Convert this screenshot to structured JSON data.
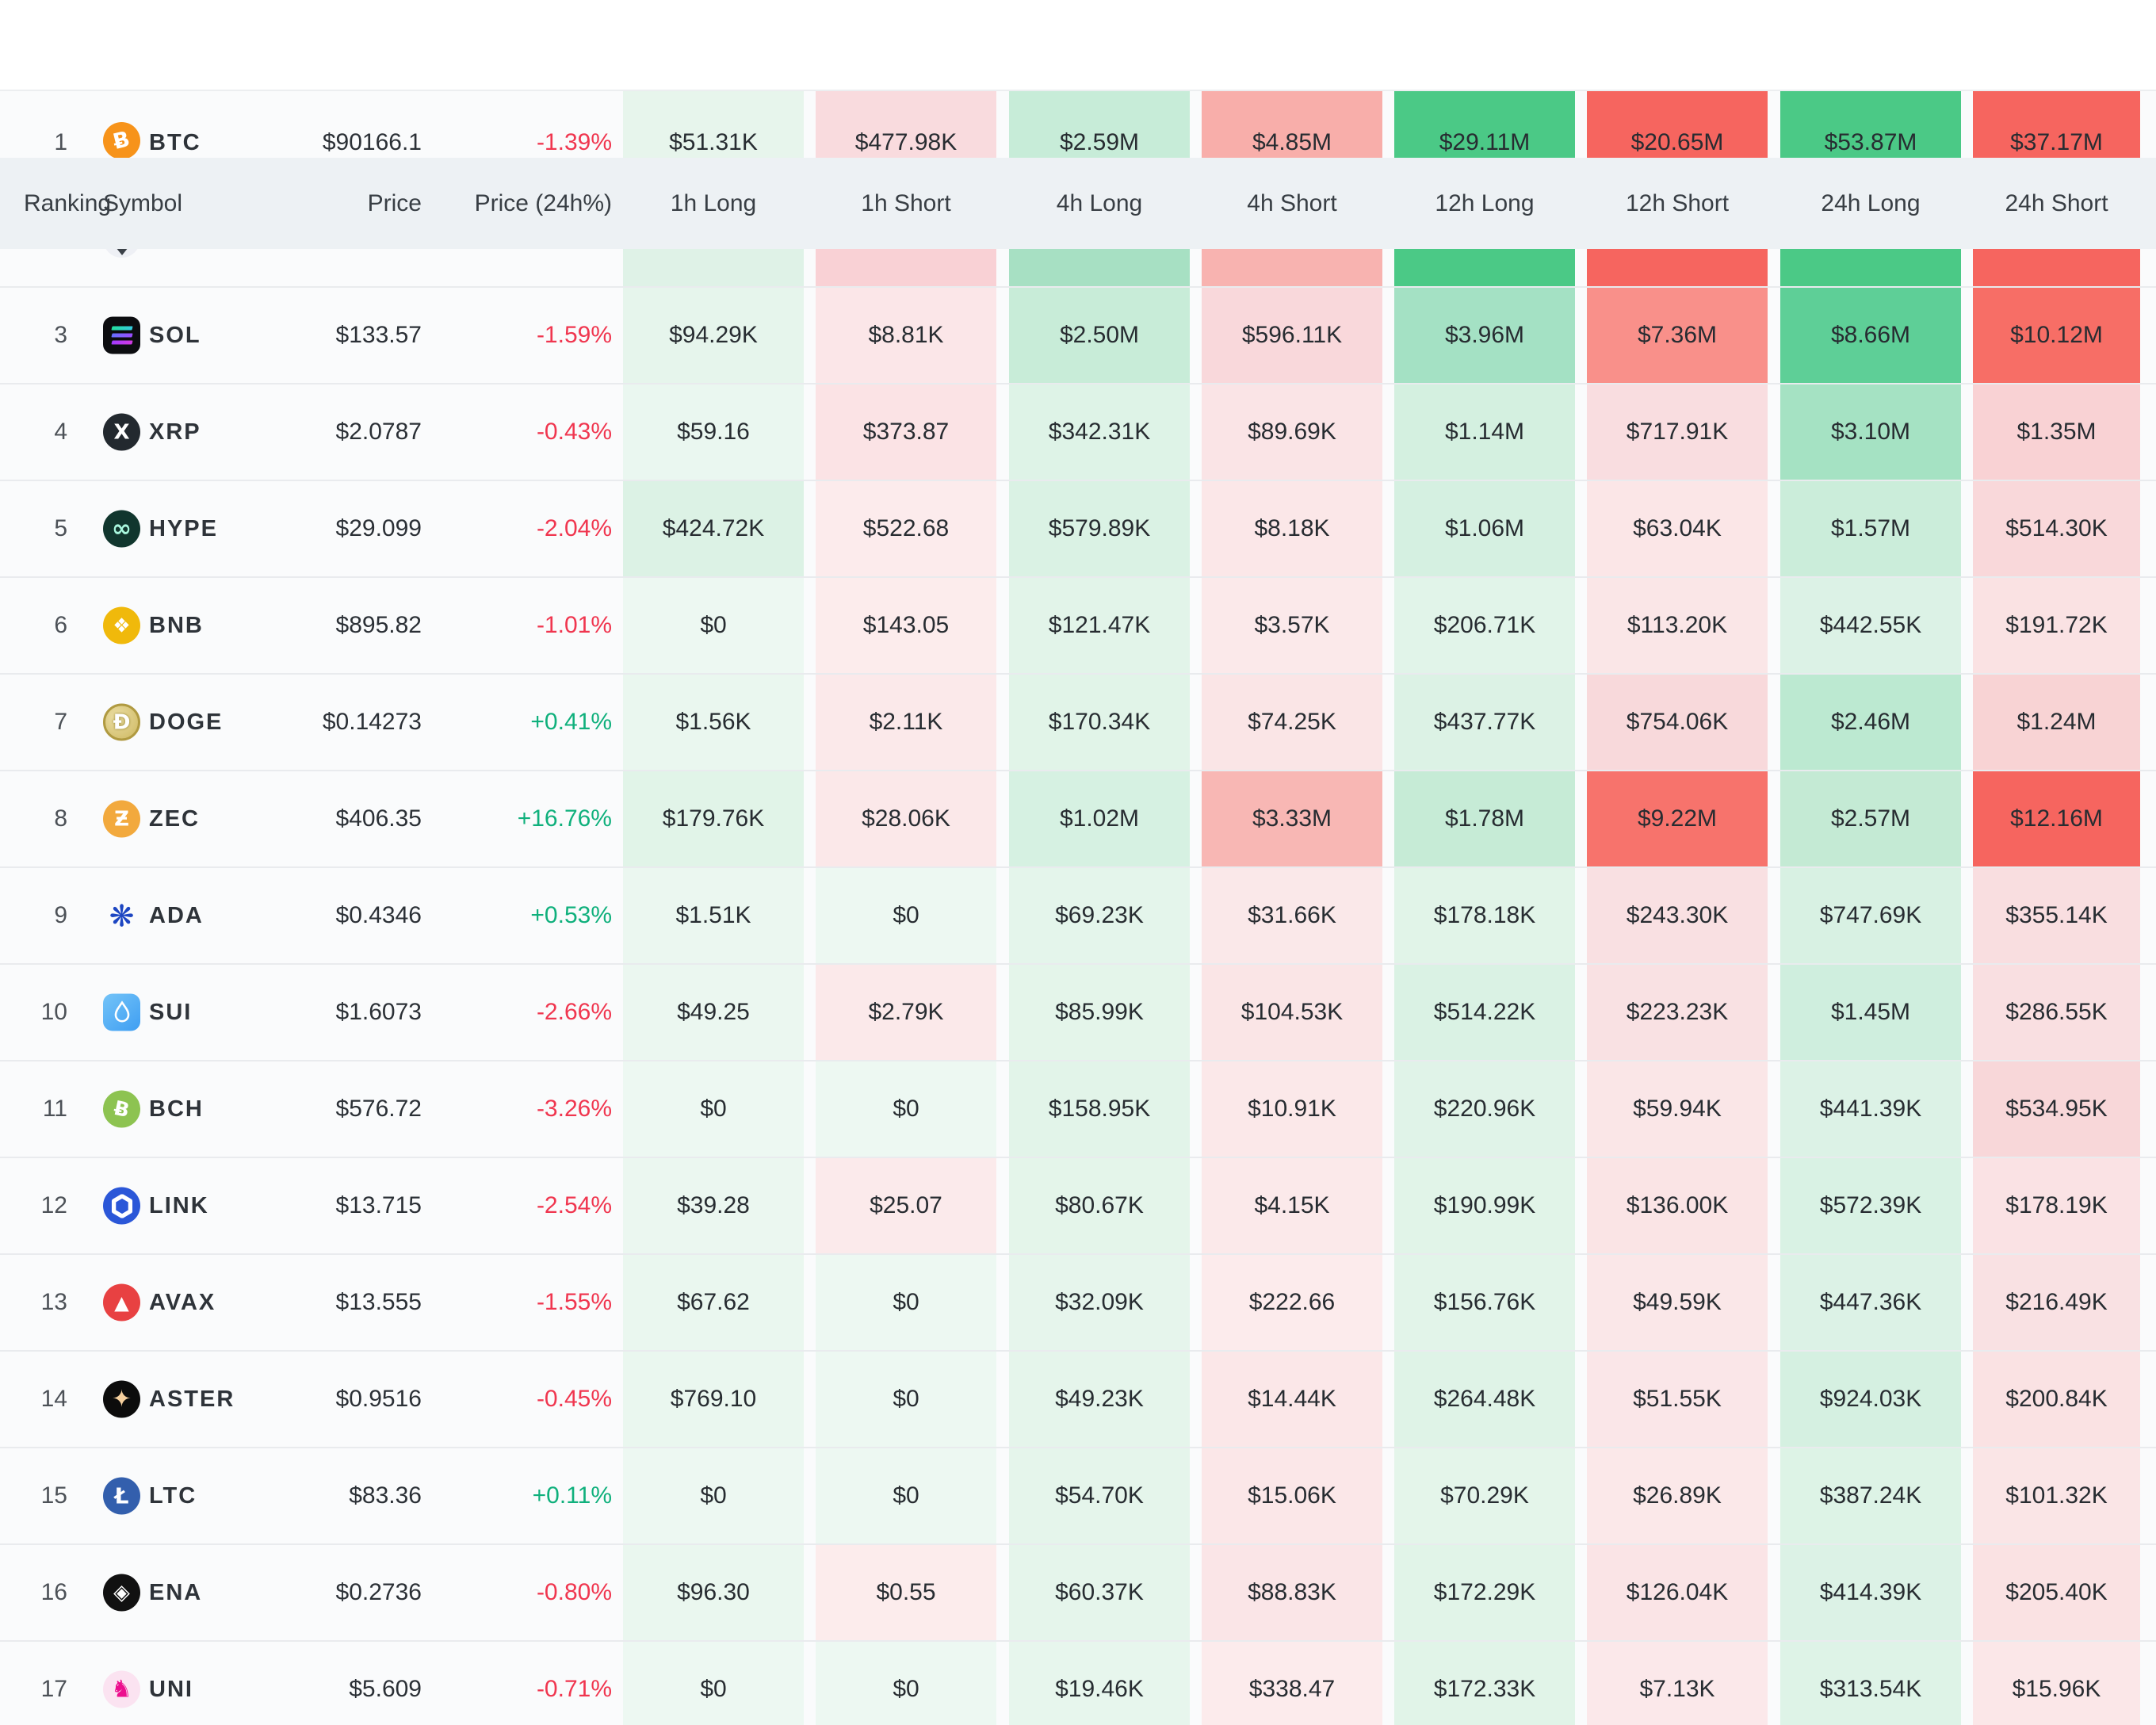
{
  "page": {
    "header_bg": "#edf1f4",
    "row_bg": "#fafbfc",
    "long_full_color": "#4bc986",
    "short_full_color": "#f6655f",
    "positive_color": "#0fb07c",
    "negative_color": "#f0364f"
  },
  "header": {
    "labels": [
      "Ranking",
      "Symbol",
      "Price",
      "Price (24h%)",
      "1h Long",
      "1h Short",
      "4h Long",
      "4h Short",
      "12h Long",
      "12h Short",
      "24h Long",
      "24h Short"
    ]
  },
  "partial_row": {
    "icon": {
      "kind": "eth",
      "name": "eth-icon"
    },
    "cell_bgs": [
      "#dff2e7",
      "#f9d1d5",
      "#a7e0c3",
      "#f8b3b0",
      "#4bc986",
      "#f6655f",
      "#4bc986",
      "#f6655f"
    ]
  },
  "rows": [
    {
      "rank": "1",
      "symbol": "BTC",
      "price": "$90166.1",
      "change": "-1.39%",
      "dir": "down",
      "icon": {
        "kind": "glyph",
        "name": "btc-icon",
        "shape": "circle",
        "bg": "#f7931a",
        "fg": "#ffffff",
        "glyph": "Ƀ",
        "size": 27,
        "rot": -14
      },
      "cells": [
        {
          "v": "$51.31K",
          "bg": "#e7f5ec"
        },
        {
          "v": "$477.98K",
          "bg": "#f9dbde"
        },
        {
          "v": "$2.59M",
          "bg": "#c7ecd8"
        },
        {
          "v": "$4.85M",
          "bg": "#f8aeaa"
        },
        {
          "v": "$29.11M",
          "bg": "#4bc986"
        },
        {
          "v": "$20.65M",
          "bg": "#f6655f"
        },
        {
          "v": "$53.87M",
          "bg": "#4bc986"
        },
        {
          "v": "$37.17M",
          "bg": "#f6655f"
        }
      ]
    },
    {
      "rank": "3",
      "symbol": "SOL",
      "price": "$133.57",
      "change": "-1.59%",
      "dir": "down",
      "icon": {
        "kind": "sol",
        "name": "sol-icon"
      },
      "cells": [
        {
          "v": "$94.29K",
          "bg": "#e6f5ec"
        },
        {
          "v": "$8.81K",
          "bg": "#fbe6e8"
        },
        {
          "v": "$2.50M",
          "bg": "#c8ecd8"
        },
        {
          "v": "$596.11K",
          "bg": "#f9d8db"
        },
        {
          "v": "$3.96M",
          "bg": "#a4e1c4"
        },
        {
          "v": "$7.36M",
          "bg": "#f9908a"
        },
        {
          "v": "$8.66M",
          "bg": "#5ecf97"
        },
        {
          "v": "$10.12M",
          "bg": "#f76e66"
        }
      ]
    },
    {
      "rank": "4",
      "symbol": "XRP",
      "price": "$2.0787",
      "change": "-0.43%",
      "dir": "down",
      "icon": {
        "kind": "glyph",
        "name": "xrp-icon",
        "shape": "circle",
        "bg": "#23292f",
        "fg": "#ffffff",
        "glyph": "X",
        "size": 26,
        "rot": 0
      },
      "cells": [
        {
          "v": "$59.16",
          "bg": "#eaf7f0"
        },
        {
          "v": "$373.87",
          "bg": "#fbe3e5"
        },
        {
          "v": "$342.31K",
          "bg": "#def3e7"
        },
        {
          "v": "$89.69K",
          "bg": "#fae4e6"
        },
        {
          "v": "$1.14M",
          "bg": "#d4f0e0"
        },
        {
          "v": "$717.91K",
          "bg": "#f9dde0"
        },
        {
          "v": "$3.10M",
          "bg": "#a5e2c3"
        },
        {
          "v": "$1.35M",
          "bg": "#f9d2d4"
        }
      ]
    },
    {
      "rank": "5",
      "symbol": "HYPE",
      "price": "$29.099",
      "change": "-2.04%",
      "dir": "down",
      "icon": {
        "kind": "glyph",
        "name": "hype-icon",
        "shape": "circle",
        "bg": "#11362e",
        "fg": "#a9f7de",
        "glyph": "∞",
        "size": 30,
        "rot": 0
      },
      "cells": [
        {
          "v": "$424.72K",
          "bg": "#dcf2e5"
        },
        {
          "v": "$522.68",
          "bg": "#fcebec"
        },
        {
          "v": "$579.89K",
          "bg": "#daf2e4"
        },
        {
          "v": "$8.18K",
          "bg": "#fbe7e8"
        },
        {
          "v": "$1.06M",
          "bg": "#d5f0e1"
        },
        {
          "v": "$63.04K",
          "bg": "#fbe6e7"
        },
        {
          "v": "$1.57M",
          "bg": "#cbedda"
        },
        {
          "v": "$514.30K",
          "bg": "#f9d8da"
        }
      ]
    },
    {
      "rank": "6",
      "symbol": "BNB",
      "price": "$895.82",
      "change": "-1.01%",
      "dir": "down",
      "icon": {
        "kind": "glyph",
        "name": "bnb-icon",
        "shape": "circle",
        "bg": "#f0b90b",
        "fg": "#ffffff",
        "glyph": "❖",
        "size": 25,
        "rot": 0
      },
      "cells": [
        {
          "v": "$0",
          "bg": "#edf8f2"
        },
        {
          "v": "$143.05",
          "bg": "#fcecec"
        },
        {
          "v": "$121.47K",
          "bg": "#e2f4e9"
        },
        {
          "v": "$3.57K",
          "bg": "#fbe9ea"
        },
        {
          "v": "$206.71K",
          "bg": "#e1f4e9"
        },
        {
          "v": "$113.20K",
          "bg": "#fae6e7"
        },
        {
          "v": "$442.55K",
          "bg": "#dcf2e6"
        },
        {
          "v": "$191.72K",
          "bg": "#fae2e3"
        }
      ]
    },
    {
      "rank": "7",
      "symbol": "DOGE",
      "price": "$0.14273",
      "change": "+0.41%",
      "dir": "up",
      "icon": {
        "kind": "glyph",
        "name": "doge-icon",
        "shape": "doge",
        "bg": "",
        "fg": "#ffffff",
        "glyph": "Ð",
        "size": 26,
        "rot": 0
      },
      "cells": [
        {
          "v": "$1.56K",
          "bg": "#eaf7ef"
        },
        {
          "v": "$2.11K",
          "bg": "#fbe9ea"
        },
        {
          "v": "$170.34K",
          "bg": "#e1f4e8"
        },
        {
          "v": "$74.25K",
          "bg": "#fae5e6"
        },
        {
          "v": "$437.77K",
          "bg": "#dcf2e5"
        },
        {
          "v": "$754.06K",
          "bg": "#f8d9db"
        },
        {
          "v": "$2.46M",
          "bg": "#bce9d1"
        },
        {
          "v": "$1.24M",
          "bg": "#f8d3d4"
        }
      ]
    },
    {
      "rank": "8",
      "symbol": "ZEC",
      "price": "$406.35",
      "change": "+16.76%",
      "dir": "up",
      "icon": {
        "kind": "glyph",
        "name": "zec-icon",
        "shape": "circle",
        "bg": "#f2a93d",
        "fg": "#ffffff",
        "glyph": "Ƶ",
        "size": 26,
        "rot": 0
      },
      "cells": [
        {
          "v": "$179.76K",
          "bg": "#e1f4e8"
        },
        {
          "v": "$28.06K",
          "bg": "#fbe8e9"
        },
        {
          "v": "$1.02M",
          "bg": "#d6f1e2"
        },
        {
          "v": "$3.33M",
          "bg": "#f8b7b4"
        },
        {
          "v": "$1.78M",
          "bg": "#c6ebd6"
        },
        {
          "v": "$9.22M",
          "bg": "#f7736c"
        },
        {
          "v": "$2.57M",
          "bg": "#c4ead4"
        },
        {
          "v": "$12.16M",
          "bg": "#f6655f"
        }
      ]
    },
    {
      "rank": "9",
      "symbol": "ADA",
      "price": "$0.4346",
      "change": "+0.53%",
      "dir": "up",
      "icon": {
        "kind": "glyph",
        "name": "ada-icon",
        "shape": "none",
        "bg": "transparent",
        "fg": "#1d46c2",
        "glyph": "❋",
        "size": 38,
        "rot": 0
      },
      "cells": [
        {
          "v": "$1.51K",
          "bg": "#ebf7f0"
        },
        {
          "v": "$0",
          "bg": "#edf8f2"
        },
        {
          "v": "$69.23K",
          "bg": "#e4f5eb"
        },
        {
          "v": "$31.66K",
          "bg": "#fae8e9"
        },
        {
          "v": "$178.18K",
          "bg": "#e1f4e8"
        },
        {
          "v": "$243.30K",
          "bg": "#f9e0e2"
        },
        {
          "v": "$747.69K",
          "bg": "#d8f1e3"
        },
        {
          "v": "$355.14K",
          "bg": "#f9dee0"
        }
      ]
    },
    {
      "rank": "10",
      "symbol": "SUI",
      "price": "$1.6073",
      "change": "-2.66%",
      "dir": "down",
      "icon": {
        "kind": "sui",
        "name": "sui-icon"
      },
      "cells": [
        {
          "v": "$49.25",
          "bg": "#ebf7f0"
        },
        {
          "v": "$2.79K",
          "bg": "#fbe9ea"
        },
        {
          "v": "$85.99K",
          "bg": "#e4f5ea"
        },
        {
          "v": "$104.53K",
          "bg": "#fae5e6"
        },
        {
          "v": "$514.22K",
          "bg": "#daf2e4"
        },
        {
          "v": "$223.23K",
          "bg": "#f9e1e3"
        },
        {
          "v": "$1.45M",
          "bg": "#cfeede"
        },
        {
          "v": "$286.55K",
          "bg": "#f9dfe1"
        }
      ]
    },
    {
      "rank": "11",
      "symbol": "BCH",
      "price": "$576.72",
      "change": "-3.26%",
      "dir": "down",
      "icon": {
        "kind": "glyph",
        "name": "bch-icon",
        "shape": "circle",
        "bg": "#8dc351",
        "fg": "#ffffff",
        "glyph": "Ƀ",
        "size": 25,
        "rot": 12
      },
      "cells": [
        {
          "v": "$0",
          "bg": "#edf8f2"
        },
        {
          "v": "$0",
          "bg": "#edf8f2"
        },
        {
          "v": "$158.95K",
          "bg": "#e2f4e9"
        },
        {
          "v": "$10.91K",
          "bg": "#fbe8e9"
        },
        {
          "v": "$220.96K",
          "bg": "#e0f3e8"
        },
        {
          "v": "$59.94K",
          "bg": "#fae6e7"
        },
        {
          "v": "$441.39K",
          "bg": "#dcf2e6"
        },
        {
          "v": "$534.95K",
          "bg": "#f8d7d9"
        }
      ]
    },
    {
      "rank": "12",
      "symbol": "LINK",
      "price": "$13.715",
      "change": "-2.54%",
      "dir": "down",
      "icon": {
        "kind": "link",
        "name": "link-icon"
      },
      "cells": [
        {
          "v": "$39.28",
          "bg": "#ebf7f0"
        },
        {
          "v": "$25.07",
          "bg": "#fbeaeb"
        },
        {
          "v": "$80.67K",
          "bg": "#e4f5ea"
        },
        {
          "v": "$4.15K",
          "bg": "#fbe9ea"
        },
        {
          "v": "$190.99K",
          "bg": "#e1f4e8"
        },
        {
          "v": "$136.00K",
          "bg": "#fae4e5"
        },
        {
          "v": "$572.39K",
          "bg": "#d9f2e4"
        },
        {
          "v": "$178.19K",
          "bg": "#fae2e4"
        }
      ]
    },
    {
      "rank": "13",
      "symbol": "AVAX",
      "price": "$13.555",
      "change": "-1.55%",
      "dir": "down",
      "icon": {
        "kind": "glyph",
        "name": "avax-icon",
        "shape": "circle",
        "bg": "#e84142",
        "fg": "#ffffff",
        "glyph": "▲",
        "size": 24,
        "rot": 0
      },
      "cells": [
        {
          "v": "$67.62",
          "bg": "#eaf7ef"
        },
        {
          "v": "$0",
          "bg": "#edf8f2"
        },
        {
          "v": "$32.09K",
          "bg": "#e6f5ec"
        },
        {
          "v": "$222.66",
          "bg": "#fcebec"
        },
        {
          "v": "$156.76K",
          "bg": "#e2f4e9"
        },
        {
          "v": "$49.59K",
          "bg": "#fae7e8"
        },
        {
          "v": "$447.36K",
          "bg": "#dcf2e6"
        },
        {
          "v": "$216.49K",
          "bg": "#f9e1e3"
        }
      ]
    },
    {
      "rank": "14",
      "symbol": "ASTER",
      "price": "$0.9516",
      "change": "-0.45%",
      "dir": "down",
      "icon": {
        "kind": "glyph",
        "name": "aster-icon",
        "shape": "circle",
        "bg": "#0c0c0c",
        "fg": "#f6d09e",
        "glyph": "✦",
        "size": 30,
        "rot": 0
      },
      "cells": [
        {
          "v": "$769.10",
          "bg": "#eaf7ef"
        },
        {
          "v": "$0",
          "bg": "#edf8f2"
        },
        {
          "v": "$49.23K",
          "bg": "#e5f5eb"
        },
        {
          "v": "$14.44K",
          "bg": "#fbe7e8"
        },
        {
          "v": "$264.48K",
          "bg": "#dff3e7"
        },
        {
          "v": "$51.55K",
          "bg": "#fae6e8"
        },
        {
          "v": "$924.03K",
          "bg": "#d5f0e1"
        },
        {
          "v": "$200.84K",
          "bg": "#fae2e3"
        }
      ]
    },
    {
      "rank": "15",
      "symbol": "LTC",
      "price": "$83.36",
      "change": "+0.11%",
      "dir": "up",
      "icon": {
        "kind": "glyph",
        "name": "ltc-icon",
        "shape": "circle",
        "bg": "#335fad",
        "fg": "#ffffff",
        "glyph": "Ł",
        "size": 28,
        "rot": 0
      },
      "cells": [
        {
          "v": "$0",
          "bg": "#edf8f2"
        },
        {
          "v": "$0",
          "bg": "#edf8f2"
        },
        {
          "v": "$54.70K",
          "bg": "#e5f5eb"
        },
        {
          "v": "$15.06K",
          "bg": "#fbe7e8"
        },
        {
          "v": "$70.29K",
          "bg": "#e4f5ea"
        },
        {
          "v": "$26.89K",
          "bg": "#fbe8e9"
        },
        {
          "v": "$387.24K",
          "bg": "#ddf3e6"
        },
        {
          "v": "$101.32K",
          "bg": "#fae5e6"
        }
      ]
    },
    {
      "rank": "16",
      "symbol": "ENA",
      "price": "$0.2736",
      "change": "-0.80%",
      "dir": "down",
      "icon": {
        "kind": "glyph",
        "name": "ena-icon",
        "shape": "circle",
        "bg": "#111111",
        "fg": "#ffffff",
        "glyph": "◈",
        "size": 27,
        "rot": 0
      },
      "cells": [
        {
          "v": "$96.30",
          "bg": "#eaf7ef"
        },
        {
          "v": "$0.55",
          "bg": "#fcecec"
        },
        {
          "v": "$60.37K",
          "bg": "#e5f5eb"
        },
        {
          "v": "$88.83K",
          "bg": "#fae5e7"
        },
        {
          "v": "$172.29K",
          "bg": "#e1f4e8"
        },
        {
          "v": "$126.04K",
          "bg": "#fae4e6"
        },
        {
          "v": "$414.39K",
          "bg": "#dcf2e6"
        },
        {
          "v": "$205.40K",
          "bg": "#fae2e3"
        }
      ]
    },
    {
      "rank": "17",
      "symbol": "UNI",
      "price": "$5.609",
      "change": "-0.71%",
      "dir": "down",
      "icon": {
        "kind": "glyph",
        "name": "uni-icon",
        "shape": "circle",
        "bg": "#fbe3f1",
        "fg": "#ec0f8e",
        "glyph": "♞",
        "size": 30,
        "rot": 0
      },
      "cells": [
        {
          "v": "$0",
          "bg": "#edf8f2"
        },
        {
          "v": "$0",
          "bg": "#edf8f2"
        },
        {
          "v": "$19.46K",
          "bg": "#e7f6ed"
        },
        {
          "v": "$338.47",
          "bg": "#fcebec"
        },
        {
          "v": "$172.33K",
          "bg": "#e1f4e8"
        },
        {
          "v": "$7.13K",
          "bg": "#fbe8ea"
        },
        {
          "v": "$313.54K",
          "bg": "#def3e7"
        },
        {
          "v": "$15.96K",
          "bg": "#fbe7e8"
        }
      ]
    }
  ]
}
